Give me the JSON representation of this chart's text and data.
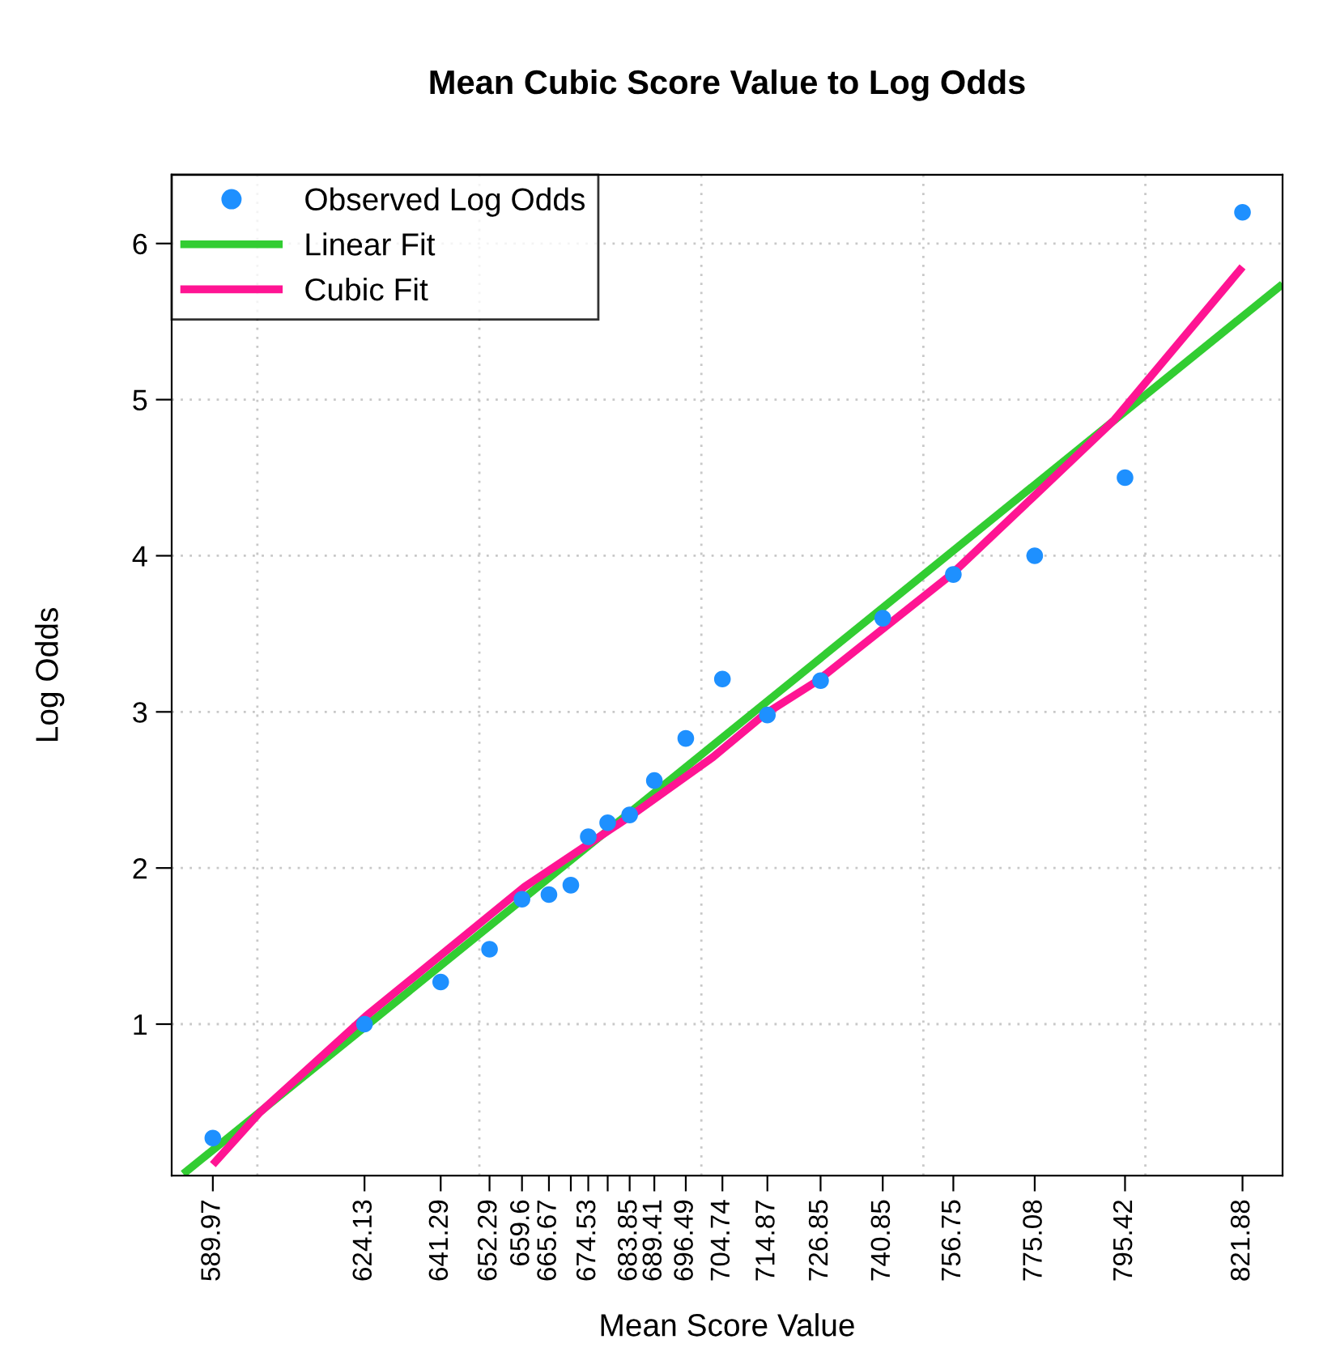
{
  "chart_data": {
    "type": "scatter",
    "title": "Mean Cubic Score Value to Log Odds",
    "xlabel": "Mean Score Value",
    "ylabel": "Log Odds",
    "xlim": [
      580.7,
      830.9
    ],
    "ylim": [
      0.03,
      6.44
    ],
    "xticks": [
      589.97,
      624.13,
      641.29,
      652.29,
      659.6,
      665.67,
      {
        "value": 670.6,
        "label": null
      },
      674.53,
      {
        "value": 678.9,
        "label": null
      },
      683.85,
      689.41,
      696.49,
      704.74,
      714.87,
      726.85,
      740.85,
      756.75,
      775.08,
      795.42,
      821.88
    ],
    "yticks": [
      1,
      2,
      3,
      4,
      5,
      6
    ],
    "grid": true,
    "legend": "top left",
    "series": [
      {
        "name": "Observed Log Odds",
        "marker": "circle",
        "color": "#1e90ff",
        "x": [
          589.97,
          624.13,
          641.29,
          652.29,
          659.6,
          665.67,
          670.6,
          674.53,
          678.9,
          683.85,
          689.41,
          696.49,
          704.74,
          714.87,
          726.85,
          740.85,
          756.75,
          775.08,
          795.42,
          821.88
        ],
        "values": [
          0.27,
          1.0,
          1.27,
          1.48,
          1.8,
          1.83,
          1.89,
          2.2,
          2.29,
          2.34,
          2.56,
          2.83,
          3.21,
          2.98,
          3.2,
          3.6,
          3.88,
          4.0,
          4.5,
          6.2
        ]
      },
      {
        "name": "Linear Fit",
        "type": "line",
        "marker": "none",
        "color": "#32cd32",
        "x": [
          583.3,
          830.9
        ],
        "values": [
          0.04,
          5.74
        ]
      },
      {
        "name": "Cubic Fit",
        "type": "line",
        "marker": "none",
        "color": "#ff1493",
        "x": [
          589.97,
          600.4,
          624.4,
          660.2,
          684.4,
          702.6,
          714.0,
          726.2,
          756.3,
          774.5,
          793.0,
          821.88
        ],
        "values": [
          0.1,
          0.43,
          1.05,
          1.88,
          2.34,
          2.71,
          2.98,
          3.2,
          3.88,
          4.37,
          4.87,
          5.85
        ]
      }
    ]
  }
}
